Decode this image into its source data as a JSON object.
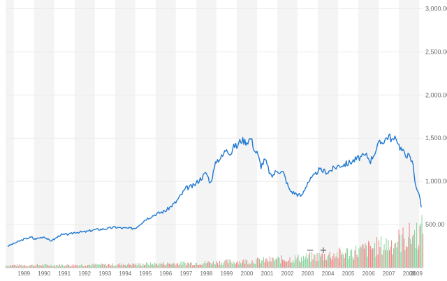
{
  "chart_data": {
    "type": "line",
    "title": "",
    "xlabel": "",
    "ylabel": "",
    "x_range": [
      1988.6,
      2009.2
    ],
    "ylim": [
      0,
      3100
    ],
    "y_ticks": [
      "500.00",
      "1,000.00",
      "1,500.00",
      "2,000.00",
      "2,500.00",
      "3,000.00"
    ],
    "y_tick_values": [
      500,
      1000,
      1500,
      2000,
      2500,
      3000
    ],
    "x_ticks": [
      "1989",
      "1990",
      "1991",
      "1992",
      "1993",
      "1994",
      "1995",
      "1996",
      "1997",
      "1998",
      "1999",
      "2000",
      "2001",
      "2002",
      "2003",
      "2004",
      "2005",
      "2006",
      "2007",
      "2008",
      "2009"
    ],
    "x_tick_values": [
      1989,
      1990,
      1991,
      1992,
      1993,
      1994,
      1995,
      1996,
      1997,
      1998,
      1999,
      2000,
      2001,
      2002,
      2003,
      2004,
      2005,
      2006,
      2007,
      2008,
      2009
    ],
    "grid": "alternating vertical year bands",
    "axis_position": "right",
    "series": [
      {
        "color": "#1f78d1",
        "x": [
          1988.7,
          1989.0,
          1989.5,
          1989.9,
          1990.0,
          1990.5,
          1990.8,
          1991.0,
          1991.3,
          1991.8,
          1992.0,
          1992.5,
          1993.0,
          1993.5,
          1994.0,
          1994.3,
          1994.8,
          1995.0,
          1995.5,
          1996.0,
          1996.5,
          1997.0,
          1997.5,
          1997.9,
          1998.0,
          1998.5,
          1998.7,
          1998.9,
          1999.0,
          1999.3,
          1999.5,
          1999.7,
          1999.9,
          2000.0,
          2000.2,
          2000.5,
          2000.7,
          2000.9,
          2001.0,
          2001.2,
          2001.4,
          2001.7,
          2002.0,
          2002.3,
          2002.6,
          2002.8,
          2003.0,
          2003.2,
          2003.5,
          2003.9,
          2004.0,
          2004.5,
          2005.0,
          2005.5,
          2006.0,
          2006.4,
          2006.6,
          2007.0,
          2007.3,
          2007.5,
          2007.7,
          2007.9,
          2008.0,
          2008.2,
          2008.5,
          2008.7,
          2008.8,
          2008.9,
          2009.0,
          2009.1
        ],
        "y": [
          250,
          280,
          330,
          355,
          330,
          360,
          310,
          330,
          380,
          390,
          410,
          415,
          440,
          450,
          470,
          460,
          455,
          460,
          560,
          620,
          660,
          760,
          920,
          950,
          980,
          1100,
          980,
          1150,
          1240,
          1290,
          1390,
          1320,
          1420,
          1400,
          1480,
          1460,
          1500,
          1350,
          1330,
          1180,
          1250,
          1050,
          1130,
          1100,
          900,
          870,
          850,
          830,
          990,
          1080,
          1130,
          1110,
          1180,
          1210,
          1270,
          1300,
          1240,
          1430,
          1480,
          1530,
          1470,
          1500,
          1420,
          1340,
          1290,
          1200,
          1000,
          880,
          870,
          700
        ]
      }
    ],
    "volume": {
      "colors": {
        "up": "#7fd49a",
        "down": "#f08080"
      },
      "note": "volume histogram at bottom, increasing over time"
    }
  },
  "zoom": {
    "minus_label": "−",
    "plus_label": "+"
  }
}
